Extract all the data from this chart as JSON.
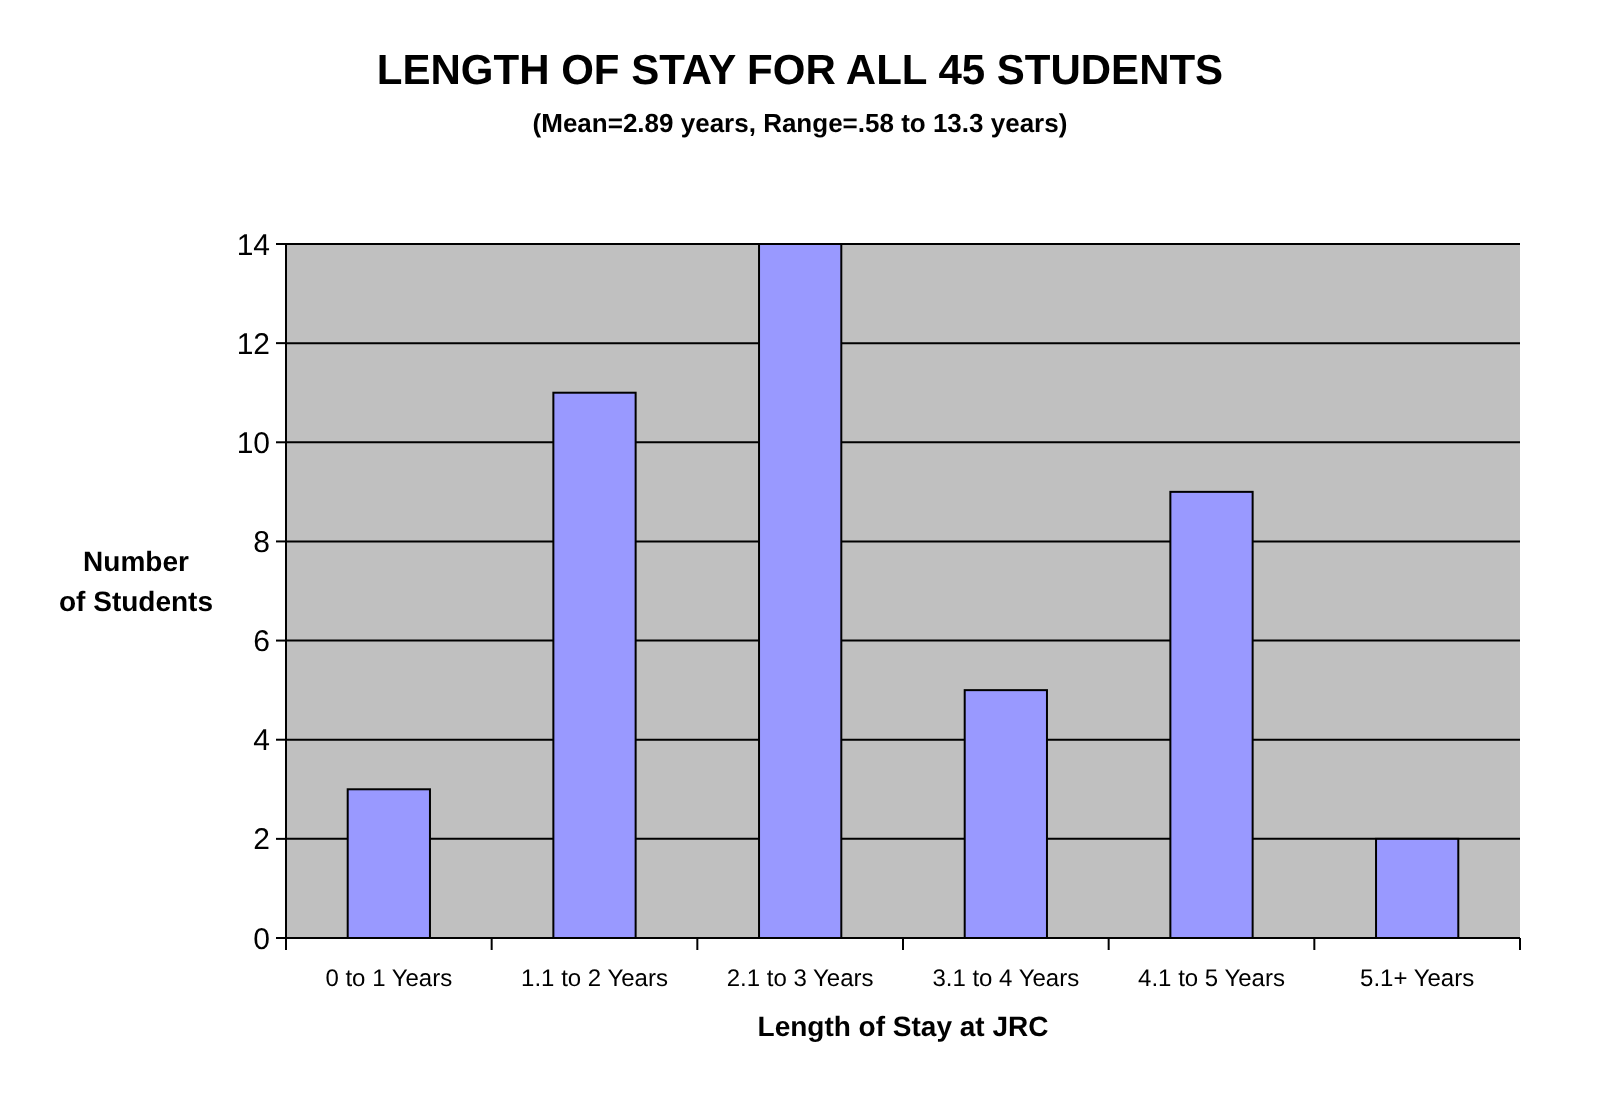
{
  "chart_data": {
    "type": "bar",
    "title": "LENGTH OF STAY FOR ALL 45 STUDENTS",
    "subtitle": "(Mean=2.89 years, Range=.58 to 13.3 years)",
    "xlabel": "Length of Stay at JRC",
    "ylabel": "Number of Students",
    "categories": [
      "0 to 1 Years",
      "1.1 to 2 Years",
      "2.1 to 3 Years",
      "3.1 to 4 Years",
      "4.1 to 5 Years",
      "5.1+ Years"
    ],
    "values": [
      3,
      11,
      14,
      5,
      9,
      2
    ],
    "color": "#9999ff",
    "ylim": [
      0,
      14
    ],
    "yticks": [
      0,
      2,
      4,
      6,
      8,
      10,
      12,
      14
    ],
    "grid": "y"
  }
}
